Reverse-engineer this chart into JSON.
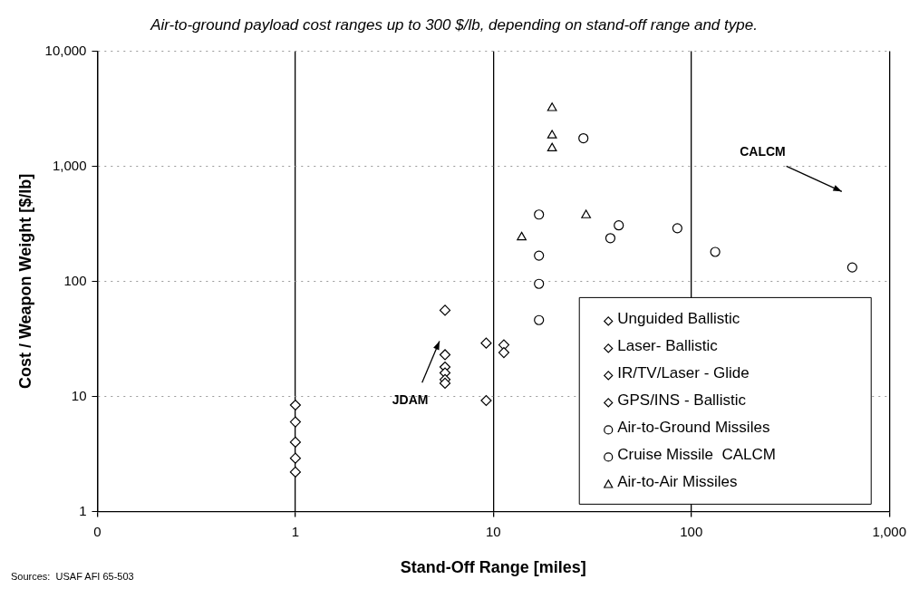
{
  "chart_data": {
    "type": "scatter",
    "title": "Air-to-ground payload cost ranges up to 300 $/lb, depending on stand-off range and type.",
    "xlabel": "Stand-Off Range [miles]",
    "ylabel": "Cost / Weapon Weight [$/lb]",
    "log": "xy",
    "xlim": [
      0.1,
      1000
    ],
    "xticks": [
      {
        "value": 0.1,
        "label": "0"
      },
      1,
      10,
      100,
      {
        "value": 1000,
        "label": "1,000"
      }
    ],
    "ylim": [
      1,
      10000
    ],
    "yticks": [
      1,
      10,
      100,
      {
        "value": 1000,
        "label": "1,000"
      },
      {
        "value": 10000,
        "label": "10,000"
      }
    ],
    "grid": true,
    "legend": "bottom right",
    "series": [
      {
        "name": "Unguided Ballistic",
        "color": "#000000",
        "marker": "diamond",
        "x": [
          1,
          1,
          1,
          1,
          1
        ],
        "values": [
          8.4,
          6,
          4,
          2.9,
          2.2
        ]
      },
      {
        "name": "Laser- Ballistic",
        "color": "#000000",
        "marker": "diamond",
        "x": [
          5.7
        ],
        "values": [
          56
        ]
      },
      {
        "name": "IR/TV/Laser - Glide",
        "color": "#000000",
        "marker": "diamond",
        "x": [
          9.2,
          11.3,
          11.3,
          9.2
        ],
        "values": [
          29,
          28,
          24,
          9.2
        ]
      },
      {
        "name": "GPS/INS - Ballistic",
        "color": "#000000",
        "marker": "diamond",
        "x": [
          5.7,
          5.7,
          5.7,
          5.7,
          5.7
        ],
        "values": [
          23,
          18,
          16,
          14,
          13
        ]
      },
      {
        "name": "Air-to-Ground Missiles",
        "color": "#000000",
        "marker": "circle",
        "x": [
          17,
          39,
          85,
          132
        ],
        "values": [
          380,
          237,
          289,
          180
        ]
      },
      {
        "name": "Cruise Missile  CALCM",
        "color": "#000000",
        "marker": "circle",
        "x": [
          17,
          17,
          17,
          28.5,
          43,
          650
        ],
        "values": [
          167,
          95,
          46,
          1750,
          306,
          132
        ]
      },
      {
        "name": "Air-to-Air Missiles",
        "color": "#000000",
        "marker": "triangle",
        "x": [
          19.8,
          19.8,
          19.8,
          29.4,
          13.9
        ],
        "values": [
          3200,
          1850,
          1430,
          375,
          241
        ]
      }
    ],
    "annotations": [
      "JDAM",
      "CALCM",
      "Sources:  USAF AFI 65-503"
    ]
  }
}
